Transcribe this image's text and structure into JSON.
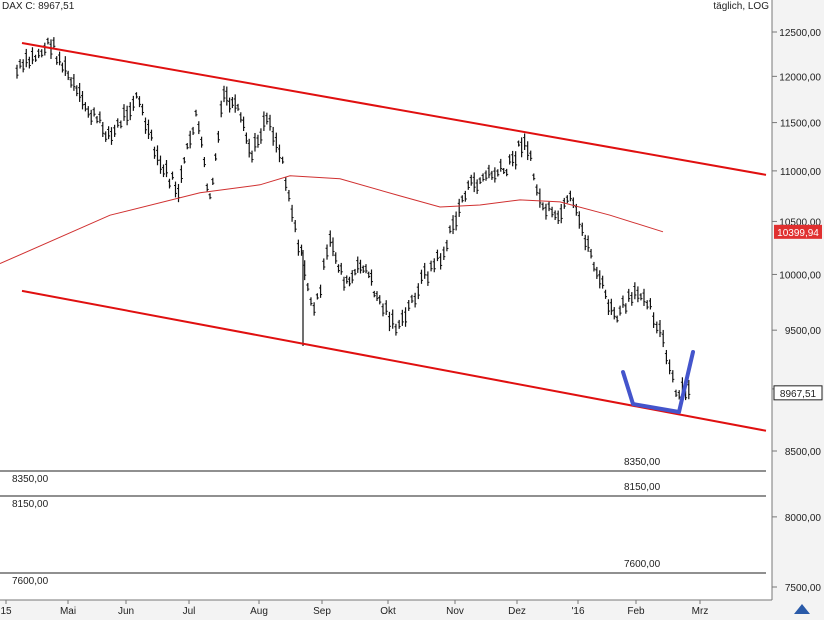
{
  "header": {
    "symbol_label": "DAX C: 8967,51",
    "interval_label": "täglich, LOG"
  },
  "colors": {
    "channel": "#e01010",
    "moving_average": "#d03030",
    "price_bars": "#111111",
    "annotation": "#4455cc",
    "price_marker": "#ffffff",
    "ma_marker": "#e03030",
    "axis_panel": "#f3f3f3"
  },
  "chart_data": {
    "type": "line",
    "title": "",
    "xlabel": "",
    "ylabel": "",
    "scale": "log",
    "ylim": [
      7400,
      12700
    ],
    "y_ticks": [
      {
        "value": 12500,
        "label": "12500,00"
      },
      {
        "value": 12000,
        "label": "12000,00"
      },
      {
        "value": 11500,
        "label": "11500,00"
      },
      {
        "value": 11000,
        "label": "11000,00"
      },
      {
        "value": 10500,
        "label": "10500,00"
      },
      {
        "value": 10000,
        "label": "10000,00"
      },
      {
        "value": 9500,
        "label": "9500,00"
      },
      {
        "value": 9000,
        "label": "9000,00"
      },
      {
        "value": 8500,
        "label": "8500,00"
      },
      {
        "value": 8000,
        "label": "8000,00"
      },
      {
        "value": 7500,
        "label": "7500,00"
      }
    ],
    "x_ticks": [
      "15",
      "Mai",
      "Jun",
      "Jul",
      "Aug",
      "Sep",
      "Okt",
      "Nov",
      "Dez",
      "'16",
      "Feb",
      "Mrz"
    ],
    "price_points": [
      {
        "x": "Apr 2015",
        "y": 12050
      },
      {
        "x": "Apr 2015",
        "y": 12374
      },
      {
        "x": "Mai 2015",
        "y": 11700
      },
      {
        "x": "Mai 2015",
        "y": 11350
      },
      {
        "x": "Jun 2015",
        "y": 11800
      },
      {
        "x": "Jun 2015",
        "y": 11100
      },
      {
        "x": "Jun 2015",
        "y": 10800
      },
      {
        "x": "Jul 2015",
        "y": 11600
      },
      {
        "x": "Jul 2015",
        "y": 10700
      },
      {
        "x": "Jul 2015",
        "y": 11800
      },
      {
        "x": "Jul 2015",
        "y": 11600
      },
      {
        "x": "Jul 2015",
        "y": 11150
      },
      {
        "x": "Aug 2015",
        "y": 11600
      },
      {
        "x": "Aug 2015",
        "y": 11100
      },
      {
        "x": "Aug 2015",
        "y": 10300
      },
      {
        "x": "Aug 2015",
        "y": 9650
      },
      {
        "x": "Sep 2015",
        "y": 10300
      },
      {
        "x": "Sep 2015",
        "y": 9900
      },
      {
        "x": "Sep 2015",
        "y": 10100
      },
      {
        "x": "Sep 2015",
        "y": 9750
      },
      {
        "x": "Okt 2015",
        "y": 9500
      },
      {
        "x": "Okt 2015",
        "y": 9950
      },
      {
        "x": "Okt 2015",
        "y": 10200
      },
      {
        "x": "Nov 2015",
        "y": 10800
      },
      {
        "x": "Nov 2015",
        "y": 10950
      },
      {
        "x": "Nov 2015",
        "y": 11000
      },
      {
        "x": "Dez 2015",
        "y": 11350
      },
      {
        "x": "Dez 2015",
        "y": 10700
      },
      {
        "x": "Dez 2015",
        "y": 10500
      },
      {
        "x": "Dez 2015",
        "y": 10700
      },
      {
        "x": "Jan 2016",
        "y": 10350
      },
      {
        "x": "Jan 2016",
        "y": 9950
      },
      {
        "x": "Jan 2016",
        "y": 9600
      },
      {
        "x": "Jan 2016",
        "y": 9750
      },
      {
        "x": "Feb 2016",
        "y": 9850
      },
      {
        "x": "Feb 2016",
        "y": 9500
      },
      {
        "x": "Feb 2016",
        "y": 8950
      },
      {
        "x": "Feb 2016",
        "y": 8968
      }
    ],
    "series": [
      {
        "values": [
          10100,
          10560,
          10780,
          10860,
          10950,
          10920,
          10750,
          10640,
          10660,
          10710,
          10690,
          10560,
          10400
        ]
      }
    ],
    "channel_upper": [
      {
        "x": "Apr 2015",
        "y": 12374
      },
      {
        "x": "Mrz 2016",
        "y": 10960
      }
    ],
    "channel_lower": [
      {
        "x": "Apr 2015",
        "y": 9850
      },
      {
        "x": "Mrz 2016",
        "y": 8660
      }
    ],
    "price_marker_label": "8967,51",
    "ma_marker_label": "10399,94",
    "annotation_label": "",
    "support_lines": [
      {
        "value": 8350,
        "label": "8350,00"
      },
      {
        "value": 8150,
        "label": "8150,00"
      },
      {
        "value": 7600,
        "label": "7600,00"
      }
    ]
  }
}
